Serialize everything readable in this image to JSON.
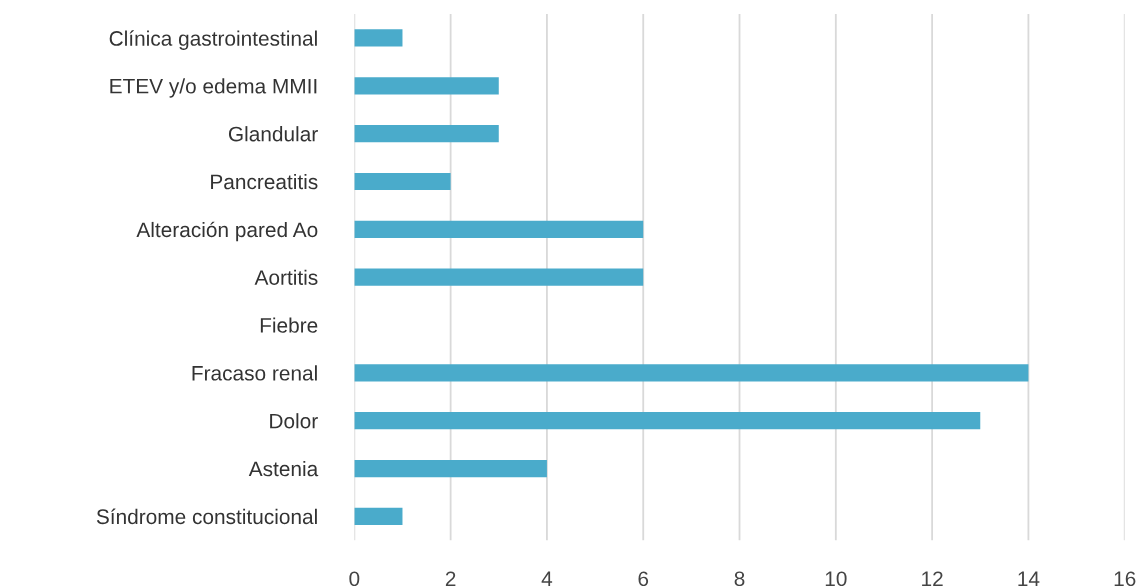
{
  "chart_data": {
    "type": "bar",
    "orientation": "horizontal",
    "categories": [
      "Clínica gastrointestinal",
      "ETEV y/o edema MMII",
      "Glandular",
      "Pancreatitis",
      "Alteración pared Ao",
      "Aortitis",
      "Fiebre",
      "Fracaso renal",
      "Dolor",
      "Astenia",
      "Síndrome constitucional"
    ],
    "values": [
      1,
      3,
      3,
      2,
      6,
      6,
      0,
      14,
      13,
      4,
      1
    ],
    "color": "#4aabcb",
    "xlim": [
      0,
      16
    ],
    "xticks": [
      0,
      2,
      4,
      6,
      8,
      10,
      12,
      14,
      16
    ],
    "grid": "x",
    "legend": false
  }
}
